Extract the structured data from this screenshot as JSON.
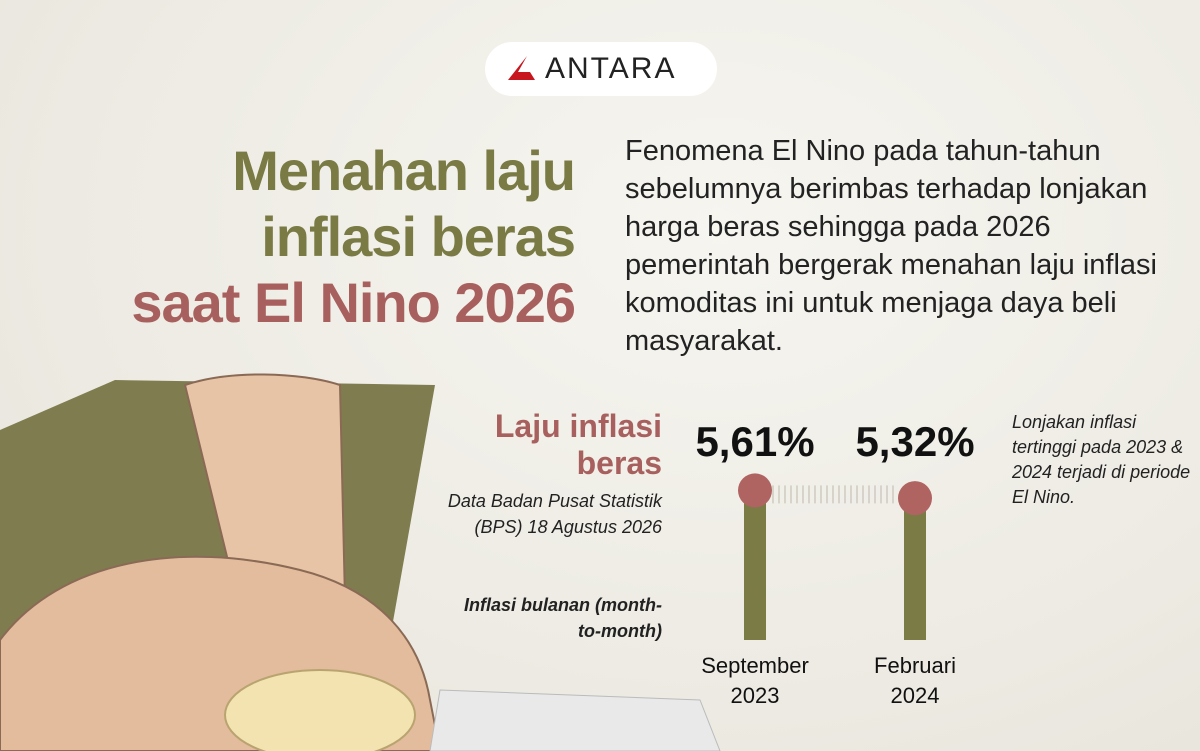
{
  "logo": "ANTARA",
  "title_lines": [
    "Menahan laju",
    "inflasi beras",
    "saat El Nino 2026"
  ],
  "description": "Fenomena El Nino pada tahun-tahun sebelumnya berimbas terhadap lonjakan harga beras sehingga pada 2026 pemerintah bergerak menahan laju inflasi komoditas ini untuk menjaga daya beli masyarakat.",
  "chart_data": {
    "type": "lollipop",
    "title": "Laju inflasi beras",
    "source": "Data Badan Pusat Statistik (BPS) 18 Agustus 2026",
    "measure": "Inflasi bulanan (month-to-month)",
    "annotation": "Lonjakan inflasi tertinggi pada 2023 & 2024 terjadi di periode El Nino.",
    "categories": [
      "September 2023",
      "Februari 2024"
    ],
    "values": [
      5.61,
      5.32
    ],
    "value_labels": [
      "5,61%",
      "5,32%"
    ],
    "color": "#7b7b46",
    "marker_color": "#b06462",
    "ylim": [
      0,
      6
    ]
  }
}
